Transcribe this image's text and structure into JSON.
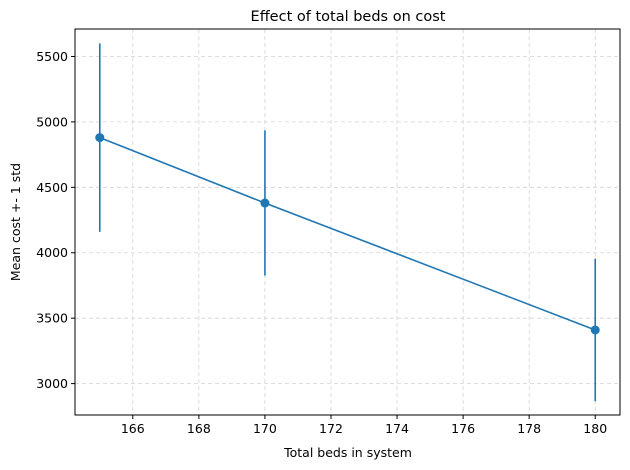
{
  "chart_data": {
    "type": "line",
    "title": "Effect of total beds on cost",
    "xlabel": "Total beds in system",
    "ylabel": "Mean cost +- 1 std",
    "xlim": [
      164.25,
      180.75
    ],
    "ylim": [
      2760,
      5710
    ],
    "x_ticks": [
      166,
      168,
      170,
      172,
      174,
      176,
      178,
      180
    ],
    "y_ticks": [
      3000,
      3500,
      4000,
      4500,
      5000,
      5500
    ],
    "grid": true,
    "grid_style": "dashed",
    "series": [
      {
        "color": "#1f77b4",
        "marker": "circle",
        "points": [
          {
            "x": 165,
            "y": 4880,
            "err": 720
          },
          {
            "x": 170,
            "y": 4380,
            "err": 555
          },
          {
            "x": 180,
            "y": 3410,
            "err": 545
          }
        ]
      }
    ]
  }
}
